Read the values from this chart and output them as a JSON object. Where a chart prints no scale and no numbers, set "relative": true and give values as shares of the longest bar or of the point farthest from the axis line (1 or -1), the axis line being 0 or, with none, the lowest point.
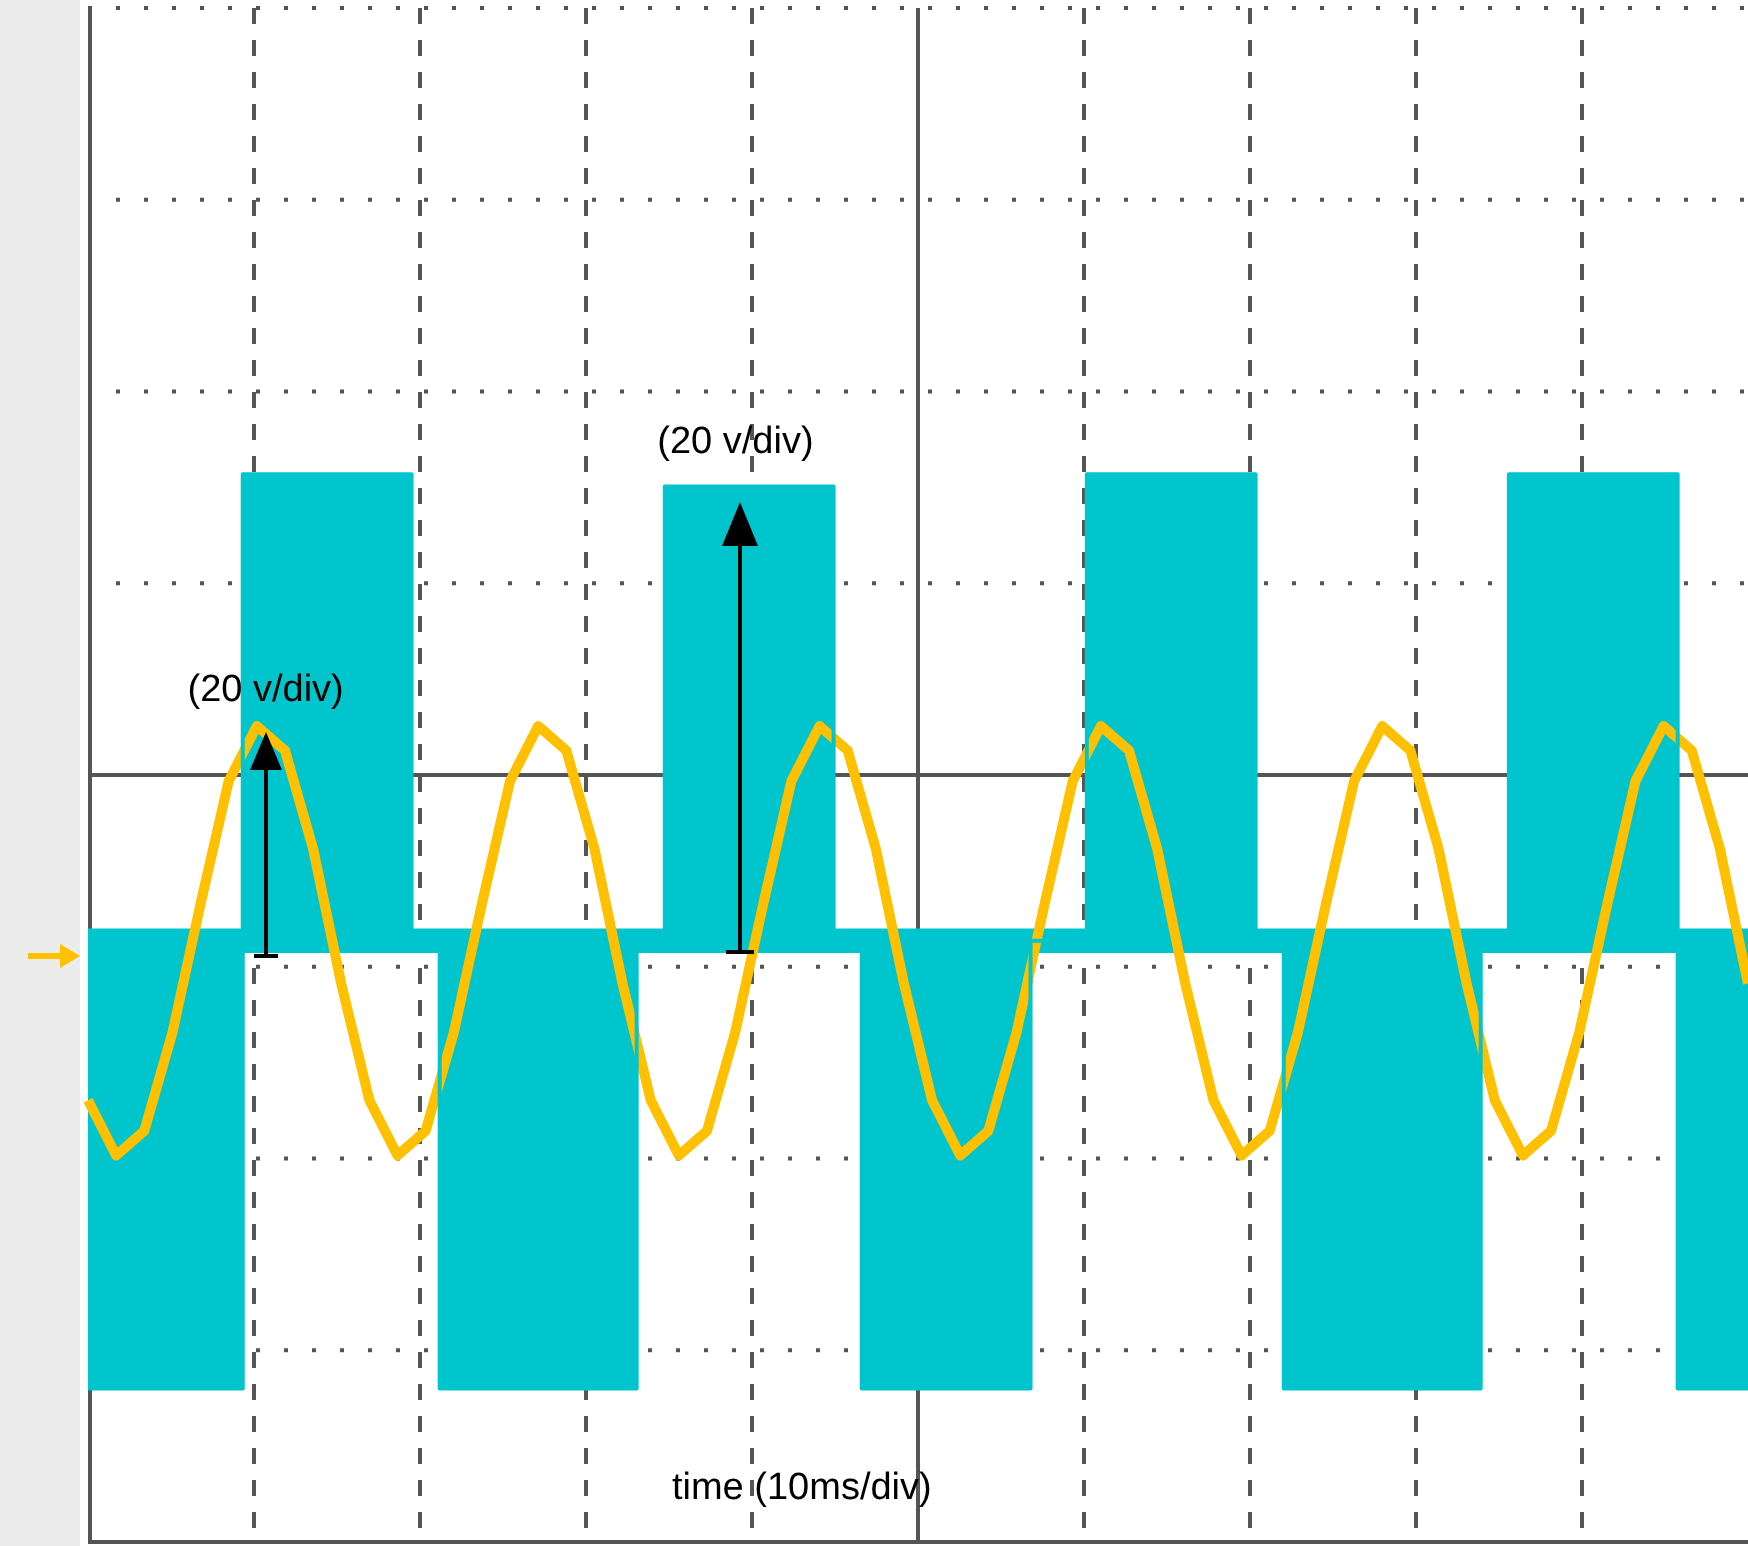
{
  "chart_data": {
    "type": "line",
    "relative": true,
    "grid": true,
    "annotations": [
      "(20 v/div)",
      "(20 v/div)",
      "time (10ms/div)"
    ],
    "categories": [
      null,
      null,
      null,
      null,
      null,
      null,
      null,
      null,
      null,
      null,
      null,
      null,
      null,
      null,
      null,
      null,
      null,
      null,
      null,
      null,
      null,
      null,
      null,
      null,
      null,
      null,
      null,
      null,
      null,
      null,
      null,
      null,
      null,
      null,
      null,
      null,
      null,
      null,
      null,
      null,
      null,
      null,
      null,
      null,
      null,
      null,
      null,
      null,
      null,
      null,
      null,
      null,
      null,
      null,
      null,
      null,
      null,
      null,
      null,
      null
    ],
    "series": [
      {
        "type": "step",
        "color": "#00c5cd",
        "values": [
          -1.0,
          -1.0,
          -1.0,
          -1.0,
          -1.0,
          -1.0,
          0.49,
          0.49,
          0.49,
          0.49,
          0.49,
          0.49,
          -0.27,
          -1.0,
          -1.0,
          -1.0,
          -1.0,
          -1.0,
          -1.0,
          -1.0,
          -0.27,
          0.47,
          0.47,
          0.47,
          0.47,
          0.47,
          0.47,
          -0.27,
          -1.0,
          -1.0,
          -1.0,
          -1.0,
          -1.0,
          -1.0,
          -0.27,
          -0.27,
          0.49,
          0.49,
          0.49,
          0.49,
          0.49,
          0.49,
          -0.27,
          -1.0,
          -1.0,
          -1.0,
          -1.0,
          -1.0,
          -1.0,
          -1.0,
          -0.27,
          0.49,
          0.49,
          0.49,
          0.49,
          0.49,
          0.49,
          -1.0,
          -1.0,
          -1.0
        ],
        "lower": [
          -1.0,
          -1.0,
          -1.0,
          -1.0,
          -1.0,
          -1.0,
          -0.29,
          -0.29,
          -0.29,
          -0.29,
          -0.29,
          -0.29,
          -0.29,
          -1.0,
          -1.0,
          -1.0,
          -1.0,
          -1.0,
          -1.0,
          -1.0,
          -0.29,
          -0.29,
          -0.29,
          -0.29,
          -0.29,
          -0.29,
          -0.29,
          -0.29,
          -1.0,
          -1.0,
          -1.0,
          -1.0,
          -1.0,
          -1.0,
          -0.29,
          -0.29,
          -0.29,
          -0.29,
          -0.29,
          -0.29,
          -0.29,
          -0.29,
          -0.29,
          -1.0,
          -1.0,
          -1.0,
          -1.0,
          -1.0,
          -1.0,
          -1.0,
          -0.29,
          -0.29,
          -0.29,
          -0.29,
          -0.29,
          -0.29,
          -0.29,
          -1.0,
          -1.0,
          -1.0
        ],
        "upper": [
          -0.25,
          -0.25,
          -0.25,
          -0.25,
          -0.25,
          -0.25,
          0.49,
          0.49,
          0.49,
          0.49,
          0.49,
          0.49,
          -0.25,
          -0.25,
          -0.25,
          -0.25,
          -0.25,
          -0.25,
          -0.25,
          -0.25,
          -0.25,
          0.47,
          0.47,
          0.47,
          0.47,
          0.47,
          0.47,
          -0.25,
          -0.25,
          -0.25,
          -0.25,
          -0.25,
          -0.25,
          -0.25,
          -0.25,
          -0.25,
          0.49,
          0.49,
          0.49,
          0.49,
          0.49,
          0.49,
          -0.25,
          -0.25,
          -0.25,
          -0.25,
          -0.25,
          -0.25,
          -0.25,
          -0.25,
          -0.25,
          0.49,
          0.49,
          0.49,
          0.49,
          0.49,
          0.49,
          -0.25,
          -0.25,
          -0.25
        ]
      },
      {
        "type": "line",
        "color": "#ffc000",
        "values": [
          -0.53,
          -0.62,
          -0.58,
          -0.42,
          -0.21,
          -0.01,
          0.08,
          0.04,
          -0.12,
          -0.34,
          -0.53,
          -0.62,
          -0.58,
          -0.42,
          -0.21,
          -0.01,
          0.08,
          0.04,
          -0.12,
          -0.34,
          -0.53,
          -0.62,
          -0.58,
          -0.42,
          -0.21,
          -0.01,
          0.08,
          0.04,
          -0.12,
          -0.34,
          -0.53,
          -0.62,
          -0.58,
          -0.42,
          -0.21,
          -0.01,
          0.08,
          0.04,
          -0.12,
          -0.34,
          -0.53,
          -0.62,
          -0.58,
          -0.42,
          -0.21,
          -0.01,
          0.08,
          0.04,
          -0.12,
          -0.34,
          -0.53,
          -0.62,
          -0.58,
          -0.42,
          -0.21,
          -0.01,
          0.08,
          0.04,
          -0.12,
          -0.34
        ]
      }
    ]
  }
}
